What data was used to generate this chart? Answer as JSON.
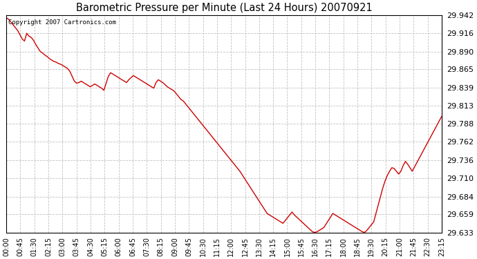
{
  "title": "Barometric Pressure per Minute (Last 24 Hours) 20070921",
  "copyright_text": "Copyright 2007 Cartronics.com",
  "line_color": "#cc0000",
  "background_color": "#ffffff",
  "plot_bg_color": "#ffffff",
  "grid_color": "#bbbbbb",
  "ylim": [
    29.633,
    29.942
  ],
  "yticks": [
    29.633,
    29.659,
    29.684,
    29.71,
    29.736,
    29.762,
    29.788,
    29.813,
    29.839,
    29.865,
    29.89,
    29.916,
    29.942
  ],
  "xtick_labels": [
    "00:00",
    "00:45",
    "01:30",
    "02:15",
    "03:00",
    "03:45",
    "04:30",
    "05:15",
    "06:00",
    "06:45",
    "07:30",
    "08:15",
    "09:00",
    "09:45",
    "10:30",
    "11:15",
    "12:00",
    "12:45",
    "13:30",
    "14:15",
    "15:00",
    "15:45",
    "16:30",
    "17:15",
    "18:00",
    "18:45",
    "19:30",
    "20:15",
    "21:00",
    "21:45",
    "22:30",
    "23:15"
  ],
  "pressure_data": [
    29.938,
    29.936,
    29.932,
    29.928,
    29.924,
    29.92,
    29.914,
    29.908,
    29.905,
    29.916,
    29.912,
    29.91,
    29.906,
    29.9,
    29.895,
    29.89,
    29.888,
    29.885,
    29.883,
    29.88,
    29.878,
    29.876,
    29.875,
    29.873,
    29.872,
    29.87,
    29.868,
    29.866,
    29.862,
    29.855,
    29.848,
    29.845,
    29.846,
    29.848,
    29.846,
    29.844,
    29.842,
    29.84,
    29.842,
    29.844,
    29.842,
    29.84,
    29.838,
    29.835,
    29.845,
    29.855,
    29.86,
    29.858,
    29.856,
    29.854,
    29.852,
    29.85,
    29.848,
    29.846,
    29.85,
    29.853,
    29.856,
    29.854,
    29.852,
    29.85,
    29.848,
    29.846,
    29.844,
    29.842,
    29.84,
    29.838,
    29.846,
    29.85,
    29.848,
    29.846,
    29.843,
    29.84,
    29.838,
    29.836,
    29.834,
    29.83,
    29.826,
    29.822,
    29.82,
    29.816,
    29.812,
    29.808,
    29.804,
    29.8,
    29.796,
    29.792,
    29.788,
    29.784,
    29.78,
    29.776,
    29.772,
    29.768,
    29.764,
    29.76,
    29.756,
    29.752,
    29.748,
    29.744,
    29.74,
    29.736,
    29.732,
    29.728,
    29.724,
    29.72,
    29.715,
    29.71,
    29.705,
    29.7,
    29.695,
    29.69,
    29.685,
    29.68,
    29.675,
    29.67,
    29.665,
    29.66,
    29.658,
    29.656,
    29.654,
    29.652,
    29.65,
    29.648,
    29.646,
    29.65,
    29.654,
    29.658,
    29.662,
    29.658,
    29.655,
    29.652,
    29.649,
    29.646,
    29.643,
    29.64,
    29.637,
    29.634,
    29.633,
    29.634,
    29.636,
    29.638,
    29.64,
    29.645,
    29.65,
    29.655,
    29.66,
    29.658,
    29.656,
    29.654,
    29.652,
    29.65,
    29.648,
    29.646,
    29.644,
    29.642,
    29.64,
    29.638,
    29.636,
    29.634,
    29.633,
    29.636,
    29.64,
    29.644,
    29.648,
    29.66,
    29.672,
    29.684,
    29.696,
    29.706,
    29.714,
    29.72,
    29.725,
    29.724,
    29.72,
    29.716,
    29.72,
    29.728,
    29.734,
    29.73,
    29.725,
    29.72,
    29.726,
    29.732,
    29.738,
    29.744,
    29.75,
    29.756,
    29.762,
    29.768,
    29.774,
    29.78,
    29.786,
    29.792,
    29.798
  ]
}
